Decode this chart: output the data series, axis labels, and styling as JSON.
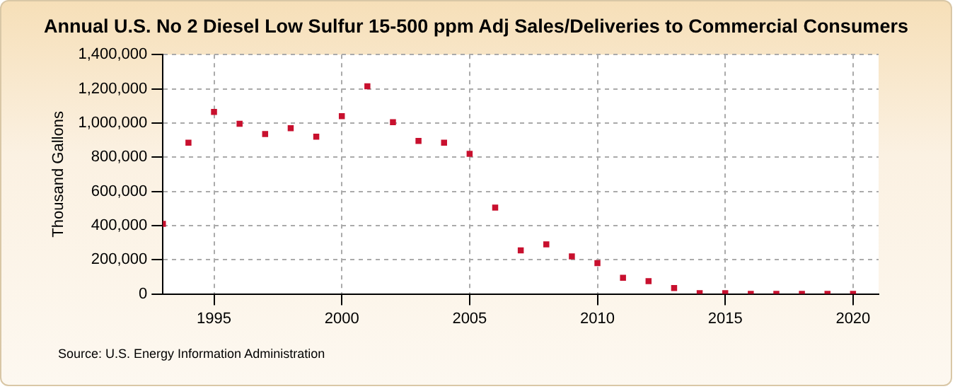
{
  "chart_data": {
    "type": "scatter",
    "title": "Annual U.S. No 2 Diesel Low Sulfur 15-500 ppm Adj Sales/Deliveries to Commercial Consumers",
    "ylabel": "Thousand Gallons",
    "x": [
      1993,
      1994,
      1995,
      1996,
      1997,
      1998,
      1999,
      2000,
      2001,
      2002,
      2003,
      2004,
      2005,
      2006,
      2007,
      2008,
      2009,
      2010,
      2011,
      2012,
      2013,
      2014,
      2015,
      2016,
      2017,
      2018,
      2019,
      2020
    ],
    "series": [
      {
        "color": "#c8102e",
        "values": [
          410000,
          885000,
          1065000,
          995000,
          935000,
          970000,
          920000,
          1040000,
          1215000,
          1005000,
          895000,
          885000,
          820000,
          505000,
          255000,
          290000,
          220000,
          180000,
          95000,
          75000,
          35000,
          5000,
          5000,
          0,
          0,
          0,
          0,
          0
        ]
      }
    ],
    "xlim": [
      1993,
      2021
    ],
    "xticks": [
      1995,
      2000,
      2005,
      2010,
      2015,
      2020
    ],
    "ylim": [
      0,
      1400000
    ],
    "yticks": [
      0,
      {
        "value": 200000,
        "label": "200,000"
      },
      {
        "value": 400000,
        "label": "400,000"
      },
      {
        "value": 600000,
        "label": "600,000"
      },
      {
        "value": 800000,
        "label": "800,000"
      },
      {
        "value": 1000000,
        "label": "1,000,000"
      },
      {
        "value": 1200000,
        "label": "1,200,000"
      },
      {
        "value": 1400000,
        "label": "1,400,000"
      }
    ],
    "grid": true,
    "legend": false,
    "marker": "square",
    "annotations": [
      "Source: U.S. Energy Information Administration"
    ]
  }
}
